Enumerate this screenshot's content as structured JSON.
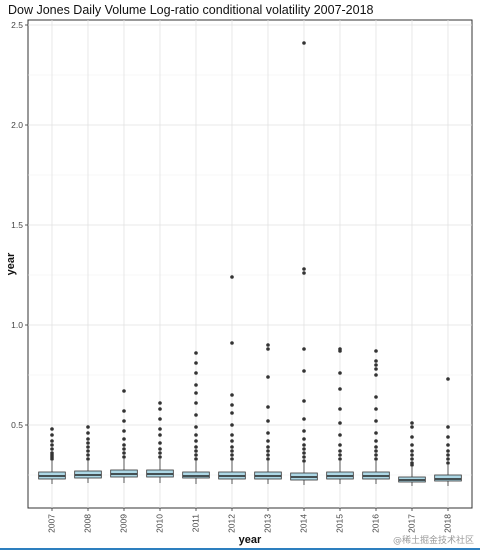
{
  "chart_data": {
    "type": "box",
    "title": "Dow Jones Daily Volume Log-ratio conditional volatility 2007-2018",
    "xlabel": "year",
    "ylabel": "year",
    "ylim": [
      0.1,
      2.5
    ],
    "yticks": [
      0.5,
      1.0,
      1.5,
      2.0,
      2.5
    ],
    "ytick_labels": [
      "0.5",
      "1.0",
      "1.5",
      "2.0",
      "2.5"
    ],
    "grid": true,
    "theme": "bw",
    "box_fill": "#add8e6",
    "box_stroke": "#333333",
    "outlier_color": "#333333",
    "categories": [
      "2007",
      "2008",
      "2009",
      "2010",
      "2011",
      "2012",
      "2013",
      "2014",
      "2015",
      "2016",
      "2017",
      "2018"
    ],
    "boxes": [
      {
        "q1": 0.23,
        "median": 0.245,
        "q3": 0.265,
        "whisker_low": 0.205,
        "whisker_high": 0.32,
        "outliers": [
          0.33,
          0.34,
          0.35,
          0.36,
          0.38,
          0.4,
          0.42,
          0.45,
          0.48
        ]
      },
      {
        "q1": 0.235,
        "median": 0.25,
        "q3": 0.27,
        "whisker_low": 0.21,
        "whisker_high": 0.32,
        "outliers": [
          0.33,
          0.35,
          0.37,
          0.39,
          0.41,
          0.43,
          0.46,
          0.49
        ]
      },
      {
        "q1": 0.24,
        "median": 0.255,
        "q3": 0.275,
        "whisker_low": 0.21,
        "whisker_high": 0.33,
        "outliers": [
          0.34,
          0.36,
          0.38,
          0.4,
          0.43,
          0.47,
          0.52,
          0.57,
          0.67
        ]
      },
      {
        "q1": 0.24,
        "median": 0.255,
        "q3": 0.275,
        "whisker_low": 0.21,
        "whisker_high": 0.33,
        "outliers": [
          0.34,
          0.36,
          0.38,
          0.41,
          0.45,
          0.48,
          0.53,
          0.58,
          0.61
        ]
      },
      {
        "q1": 0.235,
        "median": 0.245,
        "q3": 0.265,
        "whisker_low": 0.205,
        "whisker_high": 0.32,
        "outliers": [
          0.33,
          0.35,
          0.37,
          0.39,
          0.42,
          0.45,
          0.49,
          0.55,
          0.61,
          0.66,
          0.7,
          0.76,
          0.81,
          0.86
        ]
      },
      {
        "q1": 0.23,
        "median": 0.245,
        "q3": 0.265,
        "whisker_low": 0.205,
        "whisker_high": 0.32,
        "outliers": [
          0.33,
          0.35,
          0.37,
          0.39,
          0.42,
          0.45,
          0.5,
          0.56,
          0.6,
          0.65,
          0.91,
          1.24
        ]
      },
      {
        "q1": 0.23,
        "median": 0.245,
        "q3": 0.265,
        "whisker_low": 0.205,
        "whisker_high": 0.32,
        "outliers": [
          0.33,
          0.35,
          0.37,
          0.39,
          0.42,
          0.46,
          0.52,
          0.59,
          0.74,
          0.88,
          0.9
        ]
      },
      {
        "q1": 0.225,
        "median": 0.24,
        "q3": 0.26,
        "whisker_low": 0.2,
        "whisker_high": 0.31,
        "outliers": [
          0.32,
          0.34,
          0.36,
          0.38,
          0.4,
          0.43,
          0.47,
          0.53,
          0.62,
          0.77,
          0.88,
          1.26,
          1.28,
          2.41
        ]
      },
      {
        "q1": 0.23,
        "median": 0.245,
        "q3": 0.265,
        "whisker_low": 0.205,
        "whisker_high": 0.32,
        "outliers": [
          0.33,
          0.35,
          0.37,
          0.4,
          0.45,
          0.51,
          0.58,
          0.68,
          0.76,
          0.87,
          0.88
        ]
      },
      {
        "q1": 0.23,
        "median": 0.245,
        "q3": 0.265,
        "whisker_low": 0.205,
        "whisker_high": 0.32,
        "outliers": [
          0.33,
          0.35,
          0.37,
          0.39,
          0.42,
          0.46,
          0.52,
          0.58,
          0.64,
          0.75,
          0.78,
          0.8,
          0.82,
          0.87
        ]
      },
      {
        "q1": 0.215,
        "median": 0.225,
        "q3": 0.24,
        "whisker_low": 0.195,
        "whisker_high": 0.29,
        "outliers": [
          0.3,
          0.31,
          0.33,
          0.35,
          0.37,
          0.4,
          0.44,
          0.49,
          0.51
        ]
      },
      {
        "q1": 0.22,
        "median": 0.23,
        "q3": 0.25,
        "whisker_low": 0.195,
        "whisker_high": 0.3,
        "outliers": [
          0.31,
          0.33,
          0.35,
          0.37,
          0.4,
          0.44,
          0.49,
          0.73
        ]
      }
    ]
  },
  "watermark": "@稀土掘金技术社区"
}
